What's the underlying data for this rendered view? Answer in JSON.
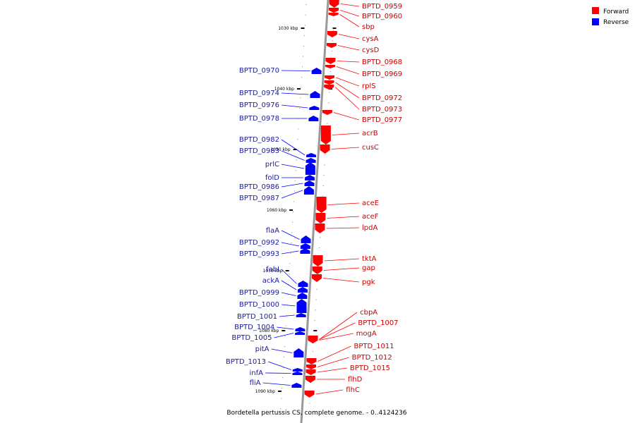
{
  "colors": {
    "forward": "#ff0000",
    "reverse": "#0000ff",
    "axis": "#999999",
    "forward_text": "#cc0000",
    "reverse_text": "#1a1aa0"
  },
  "legend": [
    {
      "label": "Forward",
      "color": "#ff0000"
    },
    {
      "label": "Reverse",
      "color": "#0000ff"
    }
  ],
  "caption": "Bordetella pertussis CS, complete genome. - 0..4124236",
  "ticks": [
    "1030 kbp",
    "1040 kbp",
    "1050 kbp",
    "1060 kbp",
    "1070 kbp",
    "1080 kbp",
    "1090 kbp"
  ],
  "forward_genes": [
    "BPTD_0959",
    "BPTD_0960",
    "sbp",
    "cysA",
    "cysD",
    "BPTD_0968",
    "BPTD_0969",
    "rplS",
    "BPTD_0972",
    "BPTD_0973",
    "BPTD_0977",
    "acrB",
    "cusC",
    "aceE",
    "aceF",
    "lpdA",
    "tktA",
    "gap",
    "pgk",
    "cbpA",
    "BPTD_1007",
    "mogA",
    "BPTD_1011",
    "BPTD_1012",
    "BPTD_1015",
    "flhD",
    "flhC"
  ],
  "reverse_genes": [
    "BPTD_0970",
    "BPTD_0974",
    "BPTD_0976",
    "BPTD_0978",
    "BPTD_0982",
    "BPTD_0983",
    "prlC",
    "folD",
    "BPTD_0986",
    "BPTD_0987",
    "flaA",
    "BPTD_0992",
    "BPTD_0993",
    "fabI",
    "ackA",
    "BPTD_0999",
    "BPTD_1000",
    "BPTD_1001",
    "BPTD_1004",
    "BPTD_1005",
    "pitA",
    "BPTD_1013",
    "infA",
    "fliA"
  ]
}
